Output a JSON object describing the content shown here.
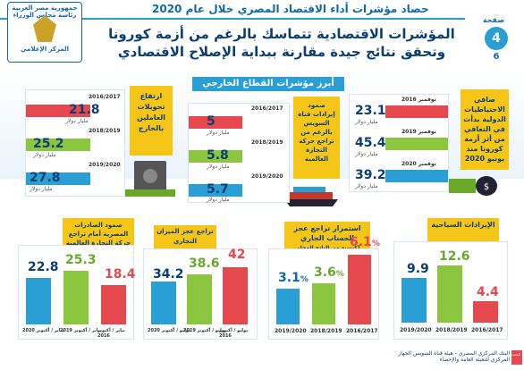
{
  "header": {
    "title": "حصاد مؤشرات أداء الاقتصاد المصري خلال عام 2020",
    "page_label": "صفحة",
    "page_current": "4",
    "page_total": "6",
    "logo_top": "جمهورية مصر العربية رئاسة مجلس الوزراء",
    "logo_bottom": "المركز الإعلامي"
  },
  "headline": {
    "line1": "المؤشرات الاقتصادية تتماسك بالرغم من أزمة كورونا",
    "line2": "وتحقق نتائج جيدة مقارنة ببداية الإصلاح الاقتصادي"
  },
  "section_title": "أبرز مؤشرات القطاع الخارجي",
  "reserves": {
    "title": "صافي الاحتياطيات الدولية بدأت في التعافي من أثر أزمة كورونا منذ يونيو 2020",
    "rows": [
      {
        "year": "نوفمبر 2016",
        "value": "23.1",
        "unit": "مليار دولار"
      },
      {
        "year": "نوفمبر 2019",
        "value": "45.4",
        "unit": "مليار دولار"
      },
      {
        "year": "نوفمبر 2020",
        "value": "39.2",
        "unit": "مليار دولار"
      }
    ]
  },
  "suez": {
    "title": "صمود إيرادات قناة السويس بالرغم من تراجع حركة التجارة العالمية",
    "rows": [
      {
        "year": "2016/2017",
        "value": "5",
        "unit": "مليار دولار"
      },
      {
        "year": "2018/2019",
        "value": "5.8",
        "unit": "مليار دولار"
      },
      {
        "year": "2019/2020",
        "value": "5.7",
        "unit": "مليار دولار"
      }
    ]
  },
  "remittances": {
    "title": "ارتفاع تحويلات العاملين بالخارج",
    "rows": [
      {
        "year": "2016/2017",
        "value": "21.8",
        "unit": "مليار دولار"
      },
      {
        "year": "2018/2019",
        "value": "25.2",
        "unit": "مليار دولار"
      },
      {
        "year": "2019/2020",
        "value": "27.8",
        "unit": "مليار دولار"
      }
    ]
  },
  "tourism": {
    "title": "الإيرادات السياحية",
    "bars": [
      {
        "year": "2019/2020",
        "value": "9.9",
        "unit": "مليار دولار",
        "color": "#2a9fd6"
      },
      {
        "year": "2018/2019",
        "value": "12.6",
        "unit": "مليار دولار",
        "color": "#8cc63f"
      },
      {
        "year": "2016/2017",
        "value": "4.4",
        "unit": "مليار دولار",
        "color": "#e5484d"
      }
    ]
  },
  "current_account": {
    "title": "استمرار تراجع عجز الحساب الجاري",
    "note": "(كنسبة من الناتج المحلي الإجمالي)",
    "bars": [
      {
        "year": "2019/2020",
        "value": "3.1",
        "unit": "%",
        "color": "#2a9fd6"
      },
      {
        "year": "2018/2019",
        "value": "3.6",
        "unit": "%",
        "color": "#8cc63f"
      },
      {
        "year": "2016/2017",
        "value": "6.1",
        "unit": "%",
        "color": "#e5484d"
      }
    ]
  },
  "trade_balance": {
    "title": "تراجع عجز الميزان التجاري",
    "bars": [
      {
        "year": "يوليو / أكتوبر 2020",
        "value": "34.2",
        "unit": "مليار دولار",
        "color": "#2a9fd6"
      },
      {
        "year": "يوليو / أكتوبر 2019",
        "value": "38.6",
        "unit": "مليار دولار",
        "color": "#8cc63f"
      },
      {
        "year": "يوليو / أكتوبر 2016",
        "value": "42",
        "unit": "مليار دولار",
        "color": "#e5484d"
      }
    ]
  },
  "exports": {
    "title": "صمود الصادرات المصرية أمام تراجع حركة التجارة العالمية",
    "bars": [
      {
        "year": "يناير / أكتوبر 2020",
        "value": "22.8",
        "unit": "مليار دولار",
        "color": "#2a9fd6"
      },
      {
        "year": "يناير / أكتوبر 2019",
        "value": "25.3",
        "unit": "مليار دولار",
        "color": "#8cc63f"
      },
      {
        "year": "يناير / أكتوبر 2016",
        "value": "18.4",
        "unit": "مليار دولار",
        "color": "#e5484d"
      }
    ]
  },
  "footer": {
    "source_label": "المصدر",
    "source": "البنك المركزي المصري - هيئة قناة السويس الجهاز المركزي للتعبئة العامة والإحصاء"
  }
}
